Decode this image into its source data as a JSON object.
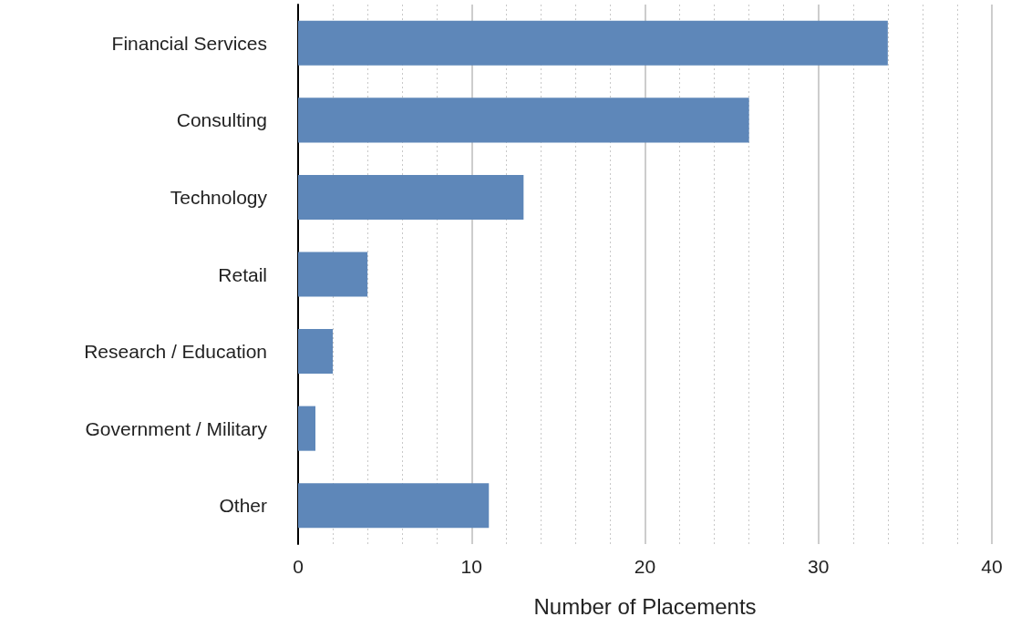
{
  "chart_data": {
    "type": "bar",
    "orientation": "horizontal",
    "xlabel": "Number of Placements",
    "categories": [
      "Financial Services",
      "Consulting",
      "Technology",
      "Retail",
      "Research / Education",
      "Government / Military",
      "Other"
    ],
    "values": [
      34,
      26,
      13,
      4,
      2,
      1,
      11
    ],
    "color": "#5e87b9",
    "xlim": [
      0,
      40
    ],
    "xticks": [
      0,
      10,
      20,
      30,
      40
    ],
    "grid": "x"
  }
}
